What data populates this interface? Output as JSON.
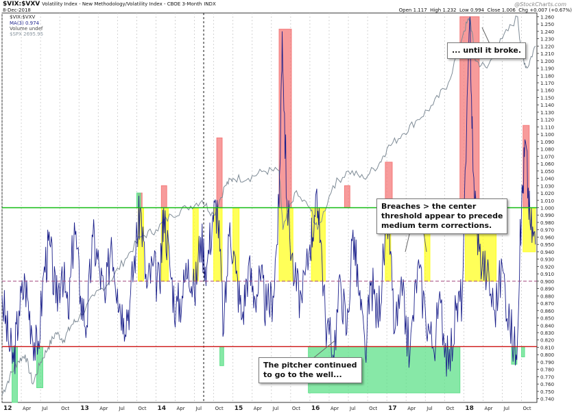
{
  "header": {
    "symbol": "$VIX:$VXV",
    "description": "Volatility Index - New Methodology/Volatility Index - CBOE 3-Month",
    "exchange": "INDX",
    "date": "8-Dec-2018",
    "ohlc": {
      "open_label": "Open",
      "open": "1.117",
      "high_label": "High",
      "high": "1.232",
      "low_label": "Low",
      "low": "0.994",
      "close_label": "Close",
      "close": "1.006",
      "chg_label": "Chg",
      "chg": "+0.007 (+0.67%)"
    },
    "watermark": "@StockCharts.com"
  },
  "legend": {
    "ratio": "$VIX:$VXV",
    "ma": "MA(3) 0.974",
    "volume": "Volume undef",
    "spx": "$SPX 2695.95"
  },
  "colors": {
    "ratio_line": "#1a1f8a",
    "spx_line": "#7d8a95",
    "upper_threshold": "#11bb11",
    "center_threshold": "#a0407a",
    "lower_threshold": "#cc1111",
    "red_box": "#f47a7a",
    "yellow_box": "#ffff22",
    "green_box": "#5fe08a"
  },
  "annotations": {
    "until_broke": "... until it broke.",
    "breaches_1": "Breaches > the center",
    "breaches_2": "threshold appear to precede",
    "breaches_3": "medium term corrections.",
    "pitcher_1": "The pitcher continued",
    "pitcher_2": "to go to the well..."
  },
  "chart_data": {
    "type": "line",
    "ylim": [
      0.735,
      1.265
    ],
    "yticks": [
      "1.260",
      "1.250",
      "1.240",
      "1.230",
      "1.220",
      "1.210",
      "1.200",
      "1.190",
      "1.180",
      "1.170",
      "1.160",
      "1.150",
      "1.140",
      "1.130",
      "1.120",
      "1.110",
      "1.100",
      "1.090",
      "1.080",
      "1.070",
      "1.060",
      "1.050",
      "1.040",
      "1.030",
      "1.020",
      "1.010",
      "1.000",
      "0.990",
      "0.980",
      "0.970",
      "0.960",
      "0.950",
      "0.940",
      "0.930",
      "0.920",
      "0.910",
      "0.900",
      "0.890",
      "0.880",
      "0.870",
      "0.860",
      "0.850",
      "0.840",
      "0.830",
      "0.820",
      "0.810",
      "0.800",
      "0.790",
      "0.780",
      "0.770",
      "0.760",
      "0.750",
      "0.740"
    ],
    "xlim": [
      2012.0,
      2018.95
    ],
    "xticks": [
      {
        "label": "12",
        "x": 2012.0,
        "major": true
      },
      {
        "label": "Apr",
        "x": 2012.25
      },
      {
        "label": "Jul",
        "x": 2012.5
      },
      {
        "label": "Oct",
        "x": 2012.75
      },
      {
        "label": "13",
        "x": 2013.0,
        "major": true
      },
      {
        "label": "Apr",
        "x": 2013.25
      },
      {
        "label": "Jul",
        "x": 2013.5
      },
      {
        "label": "Oct",
        "x": 2013.75
      },
      {
        "label": "14",
        "x": 2014.0,
        "major": true
      },
      {
        "label": "Apr",
        "x": 2014.25
      },
      {
        "label": "Jul",
        "x": 2014.5
      },
      {
        "label": "Oct",
        "x": 2014.75
      },
      {
        "label": "15",
        "x": 2015.0,
        "major": true
      },
      {
        "label": "Apr",
        "x": 2015.25
      },
      {
        "label": "Jul",
        "x": 2015.5
      },
      {
        "label": "Oct",
        "x": 2015.75
      },
      {
        "label": "16",
        "x": 2016.0,
        "major": true
      },
      {
        "label": "Apr",
        "x": 2016.25
      },
      {
        "label": "Jul",
        "x": 2016.5
      },
      {
        "label": "Oct",
        "x": 2016.75
      },
      {
        "label": "17",
        "x": 2017.0,
        "major": true
      },
      {
        "label": "Apr",
        "x": 2017.25
      },
      {
        "label": "Jul",
        "x": 2017.5
      },
      {
        "label": "Oct",
        "x": 2017.75
      },
      {
        "label": "18",
        "x": 2018.0,
        "major": true
      },
      {
        "label": "Apr",
        "x": 2018.25
      },
      {
        "label": "Jul",
        "x": 2018.5
      },
      {
        "label": "Oct",
        "x": 2018.75
      }
    ],
    "thresholds": {
      "upper": 1.0,
      "center": 0.9,
      "lower": 0.811
    },
    "event_line_x": 2014.62,
    "red_boxes": [
      {
        "x0": 2013.77,
        "x1": 2013.82,
        "y0": 1.0,
        "y1": 1.02
      },
      {
        "x0": 2014.07,
        "x1": 2014.14,
        "y0": 1.0,
        "y1": 1.03
      },
      {
        "x0": 2014.79,
        "x1": 2014.86,
        "y0": 1.0,
        "y1": 1.095
      },
      {
        "x0": 2015.6,
        "x1": 2015.76,
        "y0": 1.0,
        "y1": 1.243
      },
      {
        "x0": 2016.45,
        "x1": 2016.52,
        "y0": 1.0,
        "y1": 1.03
      },
      {
        "x0": 2016.98,
        "x1": 2017.07,
        "y0": 1.0,
        "y1": 1.062
      },
      {
        "x0": 2017.95,
        "x1": 2018.2,
        "y0": 1.0,
        "y1": 1.26
      },
      {
        "x0": 2018.77,
        "x1": 2018.85,
        "y0": 1.0,
        "y1": 1.112
      }
    ],
    "yellow_boxes": [
      {
        "x0": 2013.77,
        "x1": 2013.84,
        "y0": 0.9,
        "y1": 1.0
      },
      {
        "x0": 2014.07,
        "x1": 2014.16,
        "y0": 0.9,
        "y1": 1.0
      },
      {
        "x0": 2014.48,
        "x1": 2014.55,
        "y0": 0.9,
        "y1": 1.0
      },
      {
        "x0": 2014.75,
        "x1": 2014.86,
        "y0": 0.9,
        "y1": 1.0
      },
      {
        "x0": 2015.0,
        "x1": 2015.08,
        "y0": 0.9,
        "y1": 1.0
      },
      {
        "x0": 2015.6,
        "x1": 2015.78,
        "y0": 0.9,
        "y1": 1.0
      },
      {
        "x0": 2016.02,
        "x1": 2016.2,
        "y0": 0.9,
        "y1": 1.0
      },
      {
        "x0": 2016.98,
        "x1": 2017.05,
        "y0": 0.9,
        "y1": 1.0
      },
      {
        "x0": 2017.49,
        "x1": 2017.56,
        "y0": 0.9,
        "y1": 1.0
      },
      {
        "x0": 2018.02,
        "x1": 2018.42,
        "y0": 0.9,
        "y1": 1.0
      },
      {
        "x0": 2018.77,
        "x1": 2018.93,
        "y0": 0.94,
        "y1": 1.0
      }
    ],
    "green_boxes": [
      {
        "x0": 2012.13,
        "x1": 2012.2,
        "y0": 0.735,
        "y1": 0.811
      },
      {
        "x0": 2012.45,
        "x1": 2012.53,
        "y0": 0.755,
        "y1": 0.811
      },
      {
        "x0": 2013.75,
        "x1": 2013.8,
        "y0": 1.0,
        "y1": 1.02
      },
      {
        "x0": 2014.83,
        "x1": 2014.88,
        "y0": 0.785,
        "y1": 0.811
      },
      {
        "x0": 2015.98,
        "x1": 2017.95,
        "y0": 0.748,
        "y1": 0.811
      },
      {
        "x0": 2018.62,
        "x1": 2018.69,
        "y0": 0.787,
        "y1": 0.811
      },
      {
        "x0": 2018.75,
        "x1": 2018.79,
        "y0": 0.797,
        "y1": 0.811
      }
    ],
    "series": [
      {
        "name": "$VIX:$VXV",
        "x": [
          2012.0,
          2012.08,
          2012.15,
          2012.22,
          2012.3,
          2012.38,
          2012.46,
          2012.55,
          2012.62,
          2012.7,
          2012.78,
          2012.86,
          2012.94,
          2013.02,
          2013.1,
          2013.18,
          2013.26,
          2013.34,
          2013.42,
          2013.5,
          2013.58,
          2013.66,
          2013.74,
          2013.8,
          2013.88,
          2013.96,
          2014.05,
          2014.1,
          2014.18,
          2014.26,
          2014.34,
          2014.42,
          2014.5,
          2014.58,
          2014.66,
          2014.74,
          2014.8,
          2014.88,
          2014.96,
          2015.04,
          2015.12,
          2015.2,
          2015.28,
          2015.36,
          2015.44,
          2015.52,
          2015.6,
          2015.64,
          2015.7,
          2015.8,
          2015.9,
          2016.0,
          2016.06,
          2016.12,
          2016.2,
          2016.3,
          2016.4,
          2016.48,
          2016.56,
          2016.64,
          2016.72,
          2016.8,
          2016.88,
          2016.96,
          2017.02,
          2017.1,
          2017.2,
          2017.3,
          2017.4,
          2017.5,
          2017.6,
          2017.7,
          2017.8,
          2017.9,
          2017.98,
          2018.08,
          2018.12,
          2018.2,
          2018.3,
          2018.4,
          2018.5,
          2018.6,
          2018.68,
          2018.75,
          2018.8,
          2018.86,
          2018.93
        ],
        "y": [
          0.88,
          0.82,
          0.79,
          0.86,
          0.9,
          0.84,
          0.8,
          0.92,
          0.95,
          0.87,
          0.92,
          0.85,
          0.98,
          0.88,
          0.84,
          0.96,
          0.92,
          0.87,
          0.96,
          0.89,
          0.85,
          0.87,
          0.95,
          1.0,
          0.89,
          0.92,
          0.89,
          1.0,
          0.92,
          0.86,
          0.88,
          0.93,
          0.88,
          0.96,
          0.92,
          0.99,
          1.0,
          0.83,
          0.98,
          0.91,
          0.85,
          0.92,
          0.88,
          0.9,
          0.86,
          0.88,
          1.0,
          1.24,
          1.01,
          0.9,
          0.87,
          0.95,
          0.99,
          1.0,
          0.85,
          0.8,
          0.9,
          0.83,
          0.97,
          0.88,
          0.8,
          0.9,
          0.85,
          0.93,
          0.99,
          0.83,
          0.88,
          0.8,
          0.92,
          0.86,
          0.81,
          0.87,
          0.78,
          0.86,
          0.88,
          1.26,
          1.05,
          0.94,
          0.91,
          0.86,
          0.92,
          0.84,
          0.8,
          1.0,
          1.09,
          0.98,
          0.95
        ]
      },
      {
        "name": "$SPX",
        "x": [
          2012.0,
          2012.1,
          2012.2,
          2012.3,
          2012.4,
          2012.5,
          2012.6,
          2012.7,
          2012.8,
          2012.9,
          2013.0,
          2013.2,
          2013.4,
          2013.6,
          2013.8,
          2014.0,
          2014.2,
          2014.4,
          2014.6,
          2014.75,
          2014.9,
          2015.0,
          2015.2,
          2015.4,
          2015.6,
          2015.65,
          2015.8,
          2016.0,
          2016.1,
          2016.3,
          2016.5,
          2016.7,
          2016.9,
          2017.0,
          2017.2,
          2017.4,
          2017.6,
          2017.8,
          2018.0,
          2018.08,
          2018.15,
          2018.3,
          2018.5,
          2018.7,
          2018.75,
          2018.82,
          2018.93
        ],
        "y": [
          0.745,
          0.77,
          0.79,
          0.8,
          0.76,
          0.79,
          0.81,
          0.83,
          0.82,
          0.84,
          0.85,
          0.88,
          0.9,
          0.93,
          0.96,
          0.97,
          0.99,
          1.0,
          1.01,
          0.99,
          1.03,
          1.04,
          1.04,
          1.05,
          1.05,
          0.97,
          1.02,
          1.0,
          0.97,
          1.03,
          1.05,
          1.04,
          1.06,
          1.08,
          1.1,
          1.12,
          1.14,
          1.17,
          1.24,
          1.26,
          1.2,
          1.19,
          1.23,
          1.26,
          1.21,
          1.19,
          1.22
        ]
      }
    ]
  }
}
